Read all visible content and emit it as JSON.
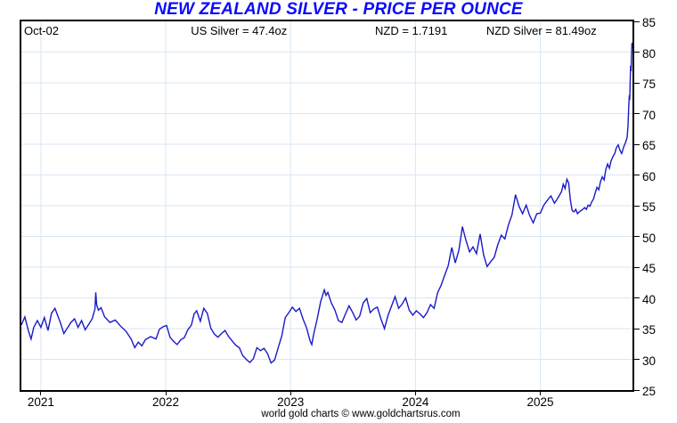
{
  "title": "NEW ZEALAND SILVER - PRICE PER OUNCE",
  "header": {
    "date": "Oct-02",
    "us_silver": "US Silver = 47.4oz",
    "nzd_rate": "NZD = 1.7191",
    "nzd_silver": "NZD Silver = 81.49oz"
  },
  "footer": "world gold charts © www.goldchartsrus.com",
  "colors": {
    "title": "#0a0aff",
    "line": "#1a1ac8",
    "grid": "#d9e6f3",
    "axis": "#000000",
    "background": "#ffffff"
  },
  "chart_data": {
    "type": "line",
    "title": "NEW ZEALAND SILVER - PRICE PER OUNCE",
    "xlabel": "",
    "ylabel": "",
    "grid": true,
    "legend": false,
    "ylim": [
      25,
      85
    ],
    "y_ticks": [
      25,
      30,
      35,
      40,
      45,
      50,
      55,
      60,
      65,
      70,
      75,
      80,
      85
    ],
    "x_range": [
      2020.844,
      2025.738
    ],
    "x_ticks": [
      2021,
      2022,
      2023,
      2024,
      2025
    ],
    "x_tick_labels": [
      "2021",
      "2022",
      "2023",
      "2024",
      "2025"
    ],
    "series": [
      {
        "name": "NZD Silver price per ounce",
        "points": [
          [
            2020.844,
            35.6
          ],
          [
            2020.872,
            36.9
          ],
          [
            2020.901,
            34.6
          ],
          [
            2020.922,
            33.3
          ],
          [
            2020.943,
            35.2
          ],
          [
            2020.972,
            36.3
          ],
          [
            2021.0,
            35.2
          ],
          [
            2021.028,
            36.8
          ],
          [
            2021.057,
            34.7
          ],
          [
            2021.085,
            37.5
          ],
          [
            2021.113,
            38.3
          ],
          [
            2021.135,
            37.1
          ],
          [
            2021.156,
            36.0
          ],
          [
            2021.184,
            34.2
          ],
          [
            2021.213,
            35.1
          ],
          [
            2021.241,
            36.0
          ],
          [
            2021.27,
            36.6
          ],
          [
            2021.298,
            35.2
          ],
          [
            2021.326,
            36.3
          ],
          [
            2021.355,
            34.8
          ],
          [
            2021.383,
            35.7
          ],
          [
            2021.411,
            36.6
          ],
          [
            2021.433,
            38.2
          ],
          [
            2021.44,
            40.9
          ],
          [
            2021.447,
            38.9
          ],
          [
            2021.461,
            38.0
          ],
          [
            2021.482,
            38.4
          ],
          [
            2021.511,
            36.9
          ],
          [
            2021.553,
            36.0
          ],
          [
            2021.596,
            36.4
          ],
          [
            2021.638,
            35.4
          ],
          [
            2021.681,
            34.6
          ],
          [
            2021.723,
            33.3
          ],
          [
            2021.752,
            31.9
          ],
          [
            2021.78,
            32.8
          ],
          [
            2021.809,
            32.2
          ],
          [
            2021.837,
            33.2
          ],
          [
            2021.879,
            33.7
          ],
          [
            2021.922,
            33.3
          ],
          [
            2021.95,
            34.9
          ],
          [
            2021.979,
            35.3
          ],
          [
            2022.007,
            35.5
          ],
          [
            2022.035,
            33.6
          ],
          [
            2022.064,
            32.9
          ],
          [
            2022.092,
            32.4
          ],
          [
            2022.121,
            33.2
          ],
          [
            2022.149,
            33.5
          ],
          [
            2022.177,
            34.8
          ],
          [
            2022.206,
            35.6
          ],
          [
            2022.227,
            37.4
          ],
          [
            2022.248,
            37.9
          ],
          [
            2022.277,
            36.2
          ],
          [
            2022.305,
            38.3
          ],
          [
            2022.333,
            37.5
          ],
          [
            2022.362,
            35.0
          ],
          [
            2022.39,
            34.1
          ],
          [
            2022.418,
            33.6
          ],
          [
            2022.447,
            34.2
          ],
          [
            2022.475,
            34.7
          ],
          [
            2022.504,
            33.7
          ],
          [
            2022.532,
            33.0
          ],
          [
            2022.56,
            32.3
          ],
          [
            2022.589,
            31.9
          ],
          [
            2022.617,
            30.6
          ],
          [
            2022.645,
            30.0
          ],
          [
            2022.674,
            29.5
          ],
          [
            2022.702,
            30.1
          ],
          [
            2022.73,
            31.9
          ],
          [
            2022.759,
            31.4
          ],
          [
            2022.787,
            31.8
          ],
          [
            2022.816,
            30.9
          ],
          [
            2022.844,
            29.4
          ],
          [
            2022.872,
            29.9
          ],
          [
            2022.901,
            31.9
          ],
          [
            2022.929,
            33.8
          ],
          [
            2022.957,
            36.8
          ],
          [
            2022.986,
            37.6
          ],
          [
            2023.014,
            38.5
          ],
          [
            2023.043,
            37.8
          ],
          [
            2023.071,
            38.3
          ],
          [
            2023.099,
            36.6
          ],
          [
            2023.128,
            35.1
          ],
          [
            2023.156,
            33.0
          ],
          [
            2023.17,
            32.4
          ],
          [
            2023.184,
            34.0
          ],
          [
            2023.213,
            36.6
          ],
          [
            2023.241,
            39.4
          ],
          [
            2023.27,
            41.3
          ],
          [
            2023.284,
            40.4
          ],
          [
            2023.298,
            40.9
          ],
          [
            2023.326,
            39.2
          ],
          [
            2023.355,
            38.0
          ],
          [
            2023.383,
            36.3
          ],
          [
            2023.411,
            36.0
          ],
          [
            2023.44,
            37.4
          ],
          [
            2023.468,
            38.7
          ],
          [
            2023.496,
            37.7
          ],
          [
            2023.525,
            36.4
          ],
          [
            2023.553,
            37.0
          ],
          [
            2023.582,
            39.2
          ],
          [
            2023.61,
            39.9
          ],
          [
            2023.638,
            37.6
          ],
          [
            2023.667,
            38.2
          ],
          [
            2023.695,
            38.5
          ],
          [
            2023.723,
            36.6
          ],
          [
            2023.752,
            35.0
          ],
          [
            2023.78,
            37.1
          ],
          [
            2023.809,
            38.7
          ],
          [
            2023.837,
            40.2
          ],
          [
            2023.865,
            38.3
          ],
          [
            2023.894,
            39.0
          ],
          [
            2023.922,
            40.0
          ],
          [
            2023.95,
            38.0
          ],
          [
            2023.979,
            37.2
          ],
          [
            2024.007,
            37.9
          ],
          [
            2024.035,
            37.4
          ],
          [
            2024.064,
            36.8
          ],
          [
            2024.092,
            37.6
          ],
          [
            2024.121,
            38.9
          ],
          [
            2024.149,
            38.3
          ],
          [
            2024.177,
            40.8
          ],
          [
            2024.206,
            42.1
          ],
          [
            2024.234,
            43.7
          ],
          [
            2024.262,
            45.2
          ],
          [
            2024.291,
            48.2
          ],
          [
            2024.319,
            45.7
          ],
          [
            2024.348,
            47.8
          ],
          [
            2024.376,
            51.6
          ],
          [
            2024.404,
            49.4
          ],
          [
            2024.433,
            47.5
          ],
          [
            2024.461,
            48.3
          ],
          [
            2024.489,
            47.2
          ],
          [
            2024.518,
            50.4
          ],
          [
            2024.546,
            47.0
          ],
          [
            2024.574,
            45.1
          ],
          [
            2024.603,
            45.9
          ],
          [
            2024.631,
            46.6
          ],
          [
            2024.66,
            48.7
          ],
          [
            2024.688,
            50.2
          ],
          [
            2024.716,
            49.6
          ],
          [
            2024.745,
            51.9
          ],
          [
            2024.773,
            53.5
          ],
          [
            2024.801,
            56.8
          ],
          [
            2024.83,
            54.9
          ],
          [
            2024.858,
            53.7
          ],
          [
            2024.887,
            55.1
          ],
          [
            2024.915,
            53.4
          ],
          [
            2024.943,
            52.2
          ],
          [
            2024.972,
            53.7
          ],
          [
            2025.0,
            53.8
          ],
          [
            2025.028,
            55.1
          ],
          [
            2025.057,
            55.9
          ],
          [
            2025.085,
            56.6
          ],
          [
            2025.113,
            55.4
          ],
          [
            2025.142,
            56.3
          ],
          [
            2025.17,
            57.3
          ],
          [
            2025.184,
            58.5
          ],
          [
            2025.199,
            57.8
          ],
          [
            2025.213,
            59.3
          ],
          [
            2025.227,
            58.7
          ],
          [
            2025.241,
            55.9
          ],
          [
            2025.255,
            54.2
          ],
          [
            2025.27,
            54.0
          ],
          [
            2025.284,
            54.4
          ],
          [
            2025.298,
            53.7
          ],
          [
            2025.312,
            54.0
          ],
          [
            2025.326,
            54.2
          ],
          [
            2025.34,
            54.4
          ],
          [
            2025.355,
            54.7
          ],
          [
            2025.369,
            54.4
          ],
          [
            2025.383,
            55.1
          ],
          [
            2025.397,
            54.9
          ],
          [
            2025.411,
            55.6
          ],
          [
            2025.426,
            56.1
          ],
          [
            2025.44,
            57.1
          ],
          [
            2025.454,
            58.0
          ],
          [
            2025.468,
            57.6
          ],
          [
            2025.482,
            58.9
          ],
          [
            2025.496,
            59.7
          ],
          [
            2025.511,
            59.2
          ],
          [
            2025.525,
            60.9
          ],
          [
            2025.539,
            61.8
          ],
          [
            2025.553,
            61.1
          ],
          [
            2025.567,
            62.3
          ],
          [
            2025.582,
            63.0
          ],
          [
            2025.596,
            63.5
          ],
          [
            2025.61,
            64.5
          ],
          [
            2025.624,
            64.9
          ],
          [
            2025.638,
            64.0
          ],
          [
            2025.652,
            63.5
          ],
          [
            2025.667,
            64.5
          ],
          [
            2025.681,
            65.2
          ],
          [
            2025.695,
            66.1
          ],
          [
            2025.702,
            68.0
          ],
          [
            2025.709,
            71.5
          ],
          [
            2025.713,
            73.0
          ],
          [
            2025.716,
            72.2
          ],
          [
            2025.72,
            75.5
          ],
          [
            2025.723,
            77.8
          ],
          [
            2025.727,
            76.9
          ],
          [
            2025.73,
            79.5
          ],
          [
            2025.734,
            81.4
          ],
          [
            2025.738,
            81.49
          ]
        ]
      }
    ]
  }
}
